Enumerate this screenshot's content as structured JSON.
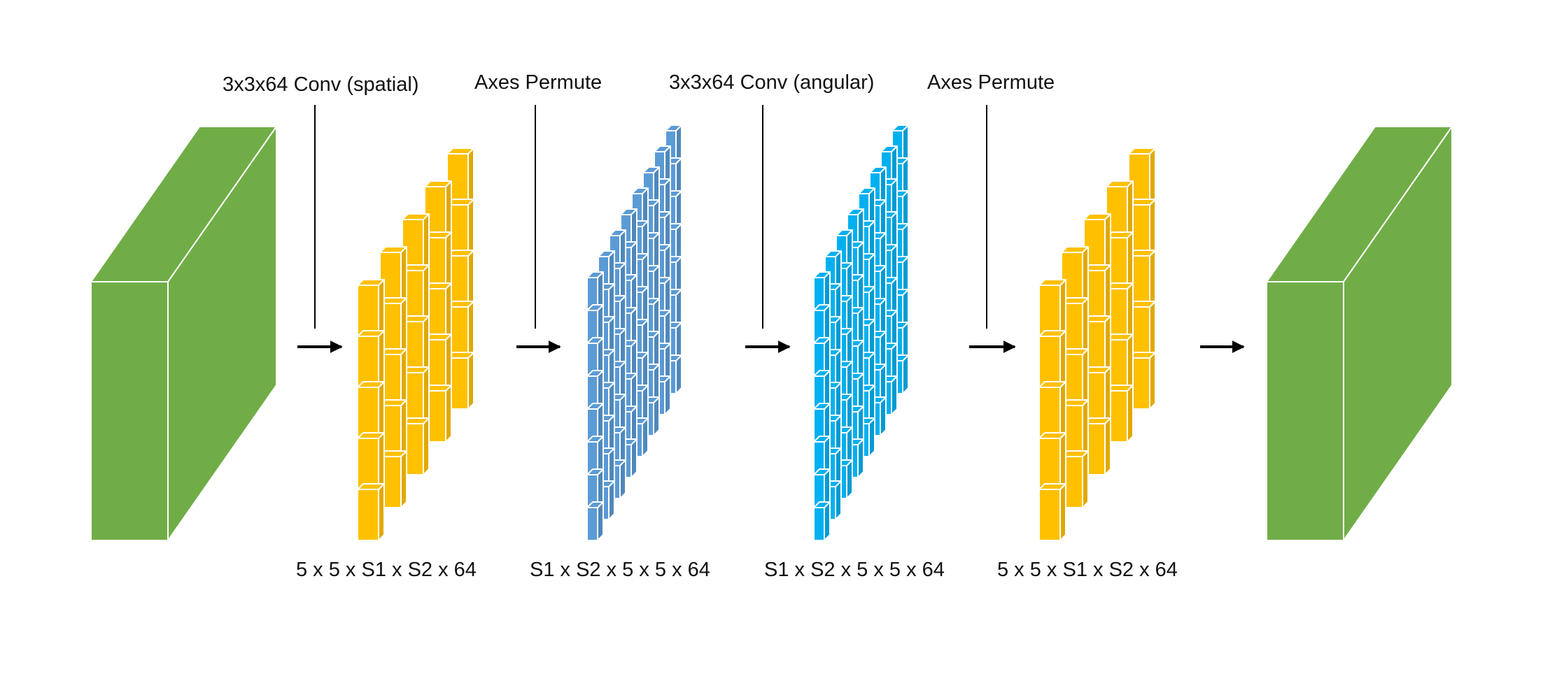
{
  "diagram": {
    "top_labels": [
      "3x3x64 Conv (spatial)",
      "Axes Permute",
      "3x3x64 Conv (angular)",
      "Axes Permute"
    ],
    "bottom_labels": [
      "5 x 5 x S1 x S2 x 64",
      "S1 x S2 x 5 x 5 x 64",
      "S1 x S2 x 5 x 5 x 64",
      "5 x 5 x S1 x S2 x 64"
    ],
    "colors": {
      "input_block": "#70ad47",
      "output_block": "#70ad47",
      "spatial_grid": "#ffc000",
      "permuted_grid": "#5b9bd5",
      "angular_grid": "#00b0f0",
      "arrow": "#000000",
      "edge": "#ffffff"
    },
    "grids": [
      {
        "name": "spatial-grid",
        "rows": 5,
        "cols": 5,
        "color_key": "spatial_grid"
      },
      {
        "name": "permuted-grid",
        "rows": 8,
        "cols": 8,
        "color_key": "permuted_grid"
      },
      {
        "name": "angular-grid",
        "rows": 8,
        "cols": 8,
        "color_key": "angular_grid"
      },
      {
        "name": "restored-grid",
        "rows": 5,
        "cols": 5,
        "color_key": "spatial_grid"
      }
    ]
  }
}
